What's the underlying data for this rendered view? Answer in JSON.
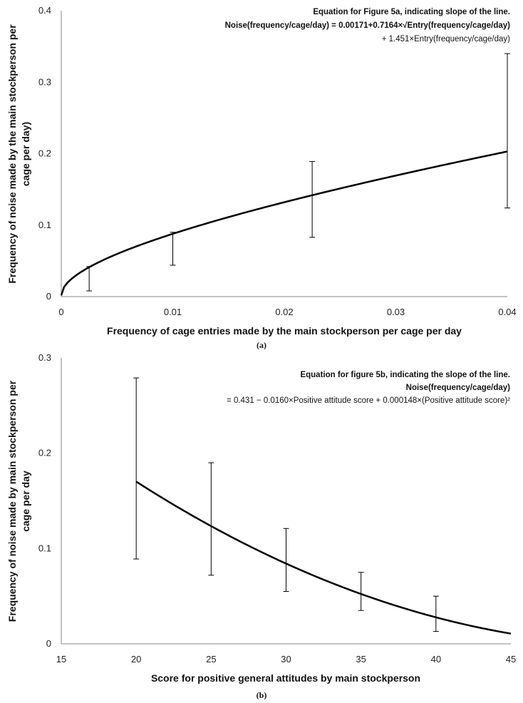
{
  "chart_data": [
    {
      "id": "a",
      "type": "line",
      "caption": "(a)",
      "xlabel": "Frequency of cage entries made by the main stockperson per cage per day",
      "ylabel_lines": [
        "Frequency of noise made by the main stockperson per",
        "cage per day)"
      ],
      "xlim": [
        0,
        0.04
      ],
      "ylim": [
        0,
        0.4
      ],
      "x_ticks": [
        0,
        0.01,
        0.02,
        0.03,
        0.04
      ],
      "x_tick_labels": [
        "0",
        "0.01",
        "0.02",
        "0.03",
        "0.04"
      ],
      "y_ticks": [
        0,
        0.1,
        0.2,
        0.3,
        0.4
      ],
      "y_tick_labels": [
        "0",
        "0.1",
        "0.2",
        "0.3",
        "0.4"
      ],
      "equation_lines": [
        "Equation for Figure 5a, indicating slope of the line.",
        "Noise(frequency/cage/day) = 0.00171+0.7164×√Entry(frequency/cage/day)",
        "+ 1.451×Entry(frequency/cage/day)"
      ],
      "curve": {
        "intercept": 0.00171,
        "sqrt_coef": 0.7164,
        "lin_coef": 1.451,
        "x_range": [
          0,
          0.04
        ]
      },
      "error_bars": [
        {
          "x": 0.0025,
          "low": 0.008,
          "high": 0.042
        },
        {
          "x": 0.01,
          "low": 0.044,
          "high": 0.09
        },
        {
          "x": 0.0225,
          "low": 0.083,
          "high": 0.189
        },
        {
          "x": 0.04,
          "low": 0.124,
          "high": 0.34
        }
      ],
      "grid": false,
      "legend": "none"
    },
    {
      "id": "b",
      "type": "line",
      "caption": "(b)",
      "xlabel": "Score for positive general attitudes by main stockperson",
      "ylabel_lines": [
        "Frequency of noise made by main stockperson per",
        "cage per day"
      ],
      "xlim": [
        15,
        45
      ],
      "ylim": [
        0,
        0.3
      ],
      "x_ticks": [
        15,
        20,
        25,
        30,
        35,
        40,
        45
      ],
      "x_tick_labels": [
        "15",
        "20",
        "25",
        "30",
        "35",
        "40",
        "45"
      ],
      "y_ticks": [
        0,
        0.1,
        0.2,
        0.3
      ],
      "y_tick_labels": [
        "0",
        "0.1",
        "0.2",
        "0.3"
      ],
      "equation_lines": [
        "Equation for figure 5b, indicating the slope of the line.",
        "Noise(frequency/cage/day)",
        "= 0.431 − 0.0160×Positive attitude score + 0.000148×(Positive attitude score)²"
      ],
      "curve": {
        "a": 0.431,
        "b": -0.016,
        "c": 0.000148,
        "x_range": [
          20,
          45
        ]
      },
      "error_bars": [
        {
          "x": 20,
          "low": 0.089,
          "high": 0.279
        },
        {
          "x": 25,
          "low": 0.072,
          "high": 0.19
        },
        {
          "x": 30,
          "low": 0.055,
          "high": 0.121
        },
        {
          "x": 35,
          "low": 0.035,
          "high": 0.075
        },
        {
          "x": 40,
          "low": 0.013,
          "high": 0.05
        }
      ],
      "grid": false,
      "legend": "none"
    }
  ]
}
